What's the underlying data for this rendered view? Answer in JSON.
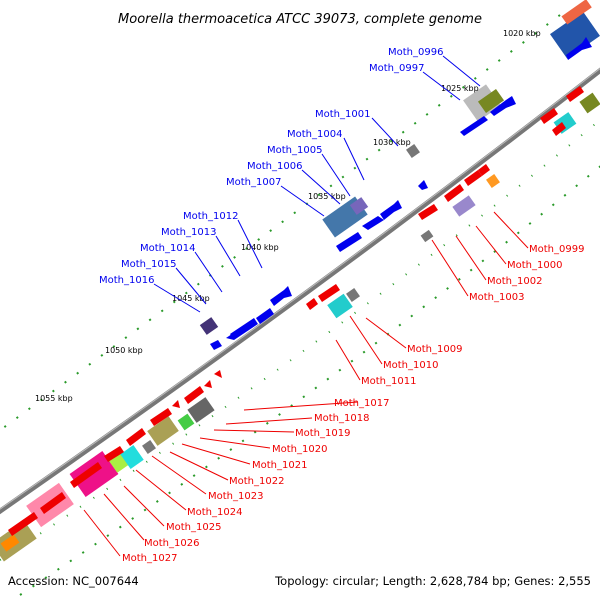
{
  "title": "Moorella thermoacetica ATCC 39073, complete genome",
  "accession": "Accession: NC_007644",
  "summary": "Topology: circular; Length: 2,628,784 bp; Genes: 2,555",
  "colors": {
    "forward": "#0000ee",
    "reverse": "#ee0000",
    "backbone": "#888888",
    "ticks": "#2a9a2a"
  },
  "kbp_marks": [
    {
      "label": "1020 kbp",
      "strand": "forward"
    },
    {
      "label": "1025 kbp",
      "strand": "forward"
    },
    {
      "label": "1030 kbp",
      "strand": "forward"
    },
    {
      "label": "1035 kbp",
      "strand": "forward"
    },
    {
      "label": "1040 kbp",
      "strand": "forward"
    },
    {
      "label": "1045 kbp",
      "strand": "forward"
    },
    {
      "label": "1050 kbp",
      "strand": "forward"
    },
    {
      "label": "1055 kbp",
      "strand": "forward"
    }
  ],
  "genes": [
    {
      "label": "Moth_0996",
      "strand": "forward"
    },
    {
      "label": "Moth_0997",
      "strand": "forward"
    },
    {
      "label": "Moth_1001",
      "strand": "forward"
    },
    {
      "label": "Moth_1004",
      "strand": "forward"
    },
    {
      "label": "Moth_1005",
      "strand": "forward"
    },
    {
      "label": "Moth_1006",
      "strand": "forward"
    },
    {
      "label": "Moth_1007",
      "strand": "forward"
    },
    {
      "label": "Moth_1012",
      "strand": "forward"
    },
    {
      "label": "Moth_1013",
      "strand": "forward"
    },
    {
      "label": "Moth_1014",
      "strand": "forward"
    },
    {
      "label": "Moth_1015",
      "strand": "forward"
    },
    {
      "label": "Moth_1016",
      "strand": "forward"
    },
    {
      "label": "Moth_0999",
      "strand": "reverse"
    },
    {
      "label": "Moth_1000",
      "strand": "reverse"
    },
    {
      "label": "Moth_1002",
      "strand": "reverse"
    },
    {
      "label": "Moth_1003",
      "strand": "reverse"
    },
    {
      "label": "Moth_1009",
      "strand": "reverse"
    },
    {
      "label": "Moth_1010",
      "strand": "reverse"
    },
    {
      "label": "Moth_1011",
      "strand": "reverse"
    },
    {
      "label": "Moth_1017",
      "strand": "reverse"
    },
    {
      "label": "Moth_1018",
      "strand": "reverse"
    },
    {
      "label": "Moth_1019",
      "strand": "reverse"
    },
    {
      "label": "Moth_1020",
      "strand": "reverse"
    },
    {
      "label": "Moth_1021",
      "strand": "reverse"
    },
    {
      "label": "Moth_1022",
      "strand": "reverse"
    },
    {
      "label": "Moth_1023",
      "strand": "reverse"
    },
    {
      "label": "Moth_1024",
      "strand": "reverse"
    },
    {
      "label": "Moth_1025",
      "strand": "reverse"
    },
    {
      "label": "Moth_1026",
      "strand": "reverse"
    },
    {
      "label": "Moth_1027",
      "strand": "reverse"
    }
  ]
}
